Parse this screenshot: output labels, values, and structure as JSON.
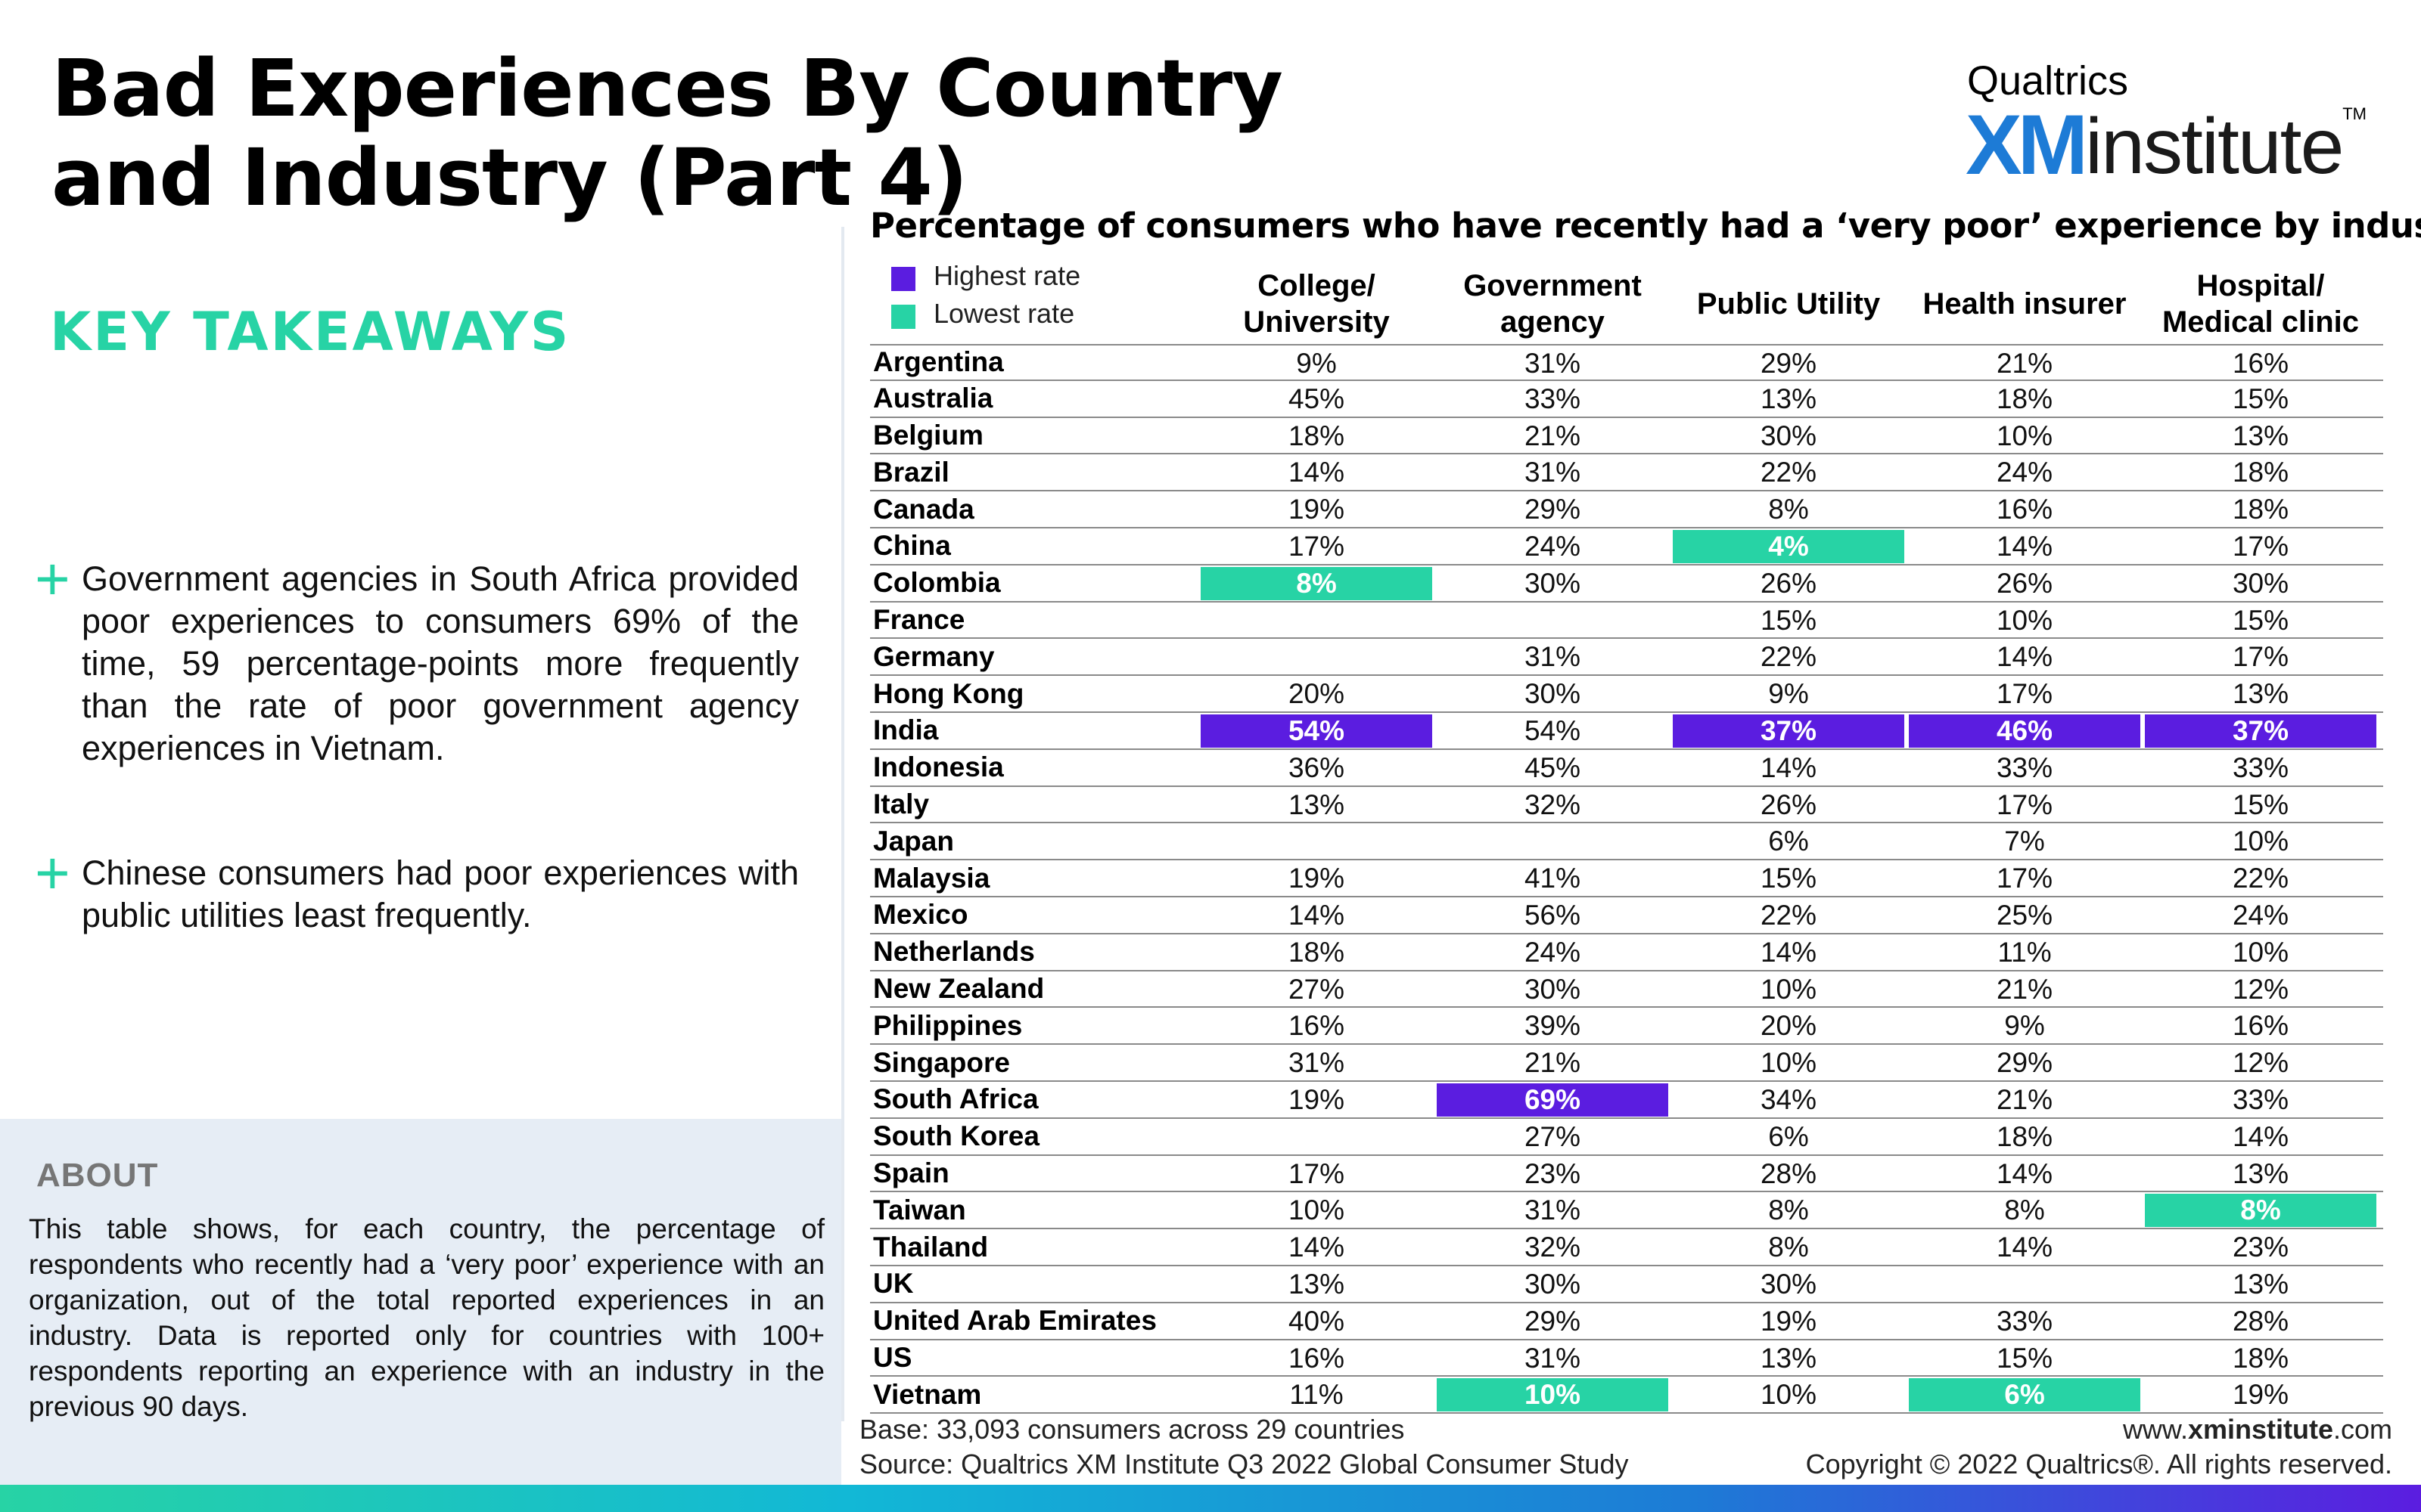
{
  "title": "Bad Experiences By Country and Industry (Part 4)",
  "logo": {
    "brand": "Qualtrics",
    "xm": "XM",
    "institute": "institute",
    "tm": "TM"
  },
  "takeaways": {
    "heading": "KEY TAKEAWAYS",
    "bullets": [
      "Government agencies in South Africa provided poor experiences to consumers 69% of the time, 59 percentage-points more frequently than the rate of poor government agency experiences in Vietnam.",
      "Chinese consumers had poor experiences with public utilities least frequently."
    ]
  },
  "about": {
    "heading": "ABOUT",
    "text": "This table shows, for each country, the percentage of respondents who recently had a ‘very poor’ experience with an organization, out of the total reported experiences in an industry. Data is reported only for countries with 100+ respondents reporting an experience with an industry in the previous 90 days."
  },
  "table": {
    "title": "Percentage of consumers who have recently had a ‘very poor’ experience by industry",
    "legend": [
      {
        "label": "Highest rate",
        "color": "#5b1de0"
      },
      {
        "label": "Lowest rate",
        "color": "#27d3a5"
      }
    ],
    "columns": [
      [
        "College/",
        "University"
      ],
      [
        "Government",
        "agency"
      ],
      [
        "Public Utility"
      ],
      [
        "Health insurer"
      ],
      [
        "Hospital/",
        "Medical clinic"
      ]
    ],
    "rows": [
      {
        "country": "Argentina",
        "values": [
          "9%",
          "31%",
          "29%",
          "21%",
          "16%"
        ],
        "flags": [
          "",
          "",
          "",
          "",
          ""
        ]
      },
      {
        "country": "Australia",
        "values": [
          "45%",
          "33%",
          "13%",
          "18%",
          "15%"
        ],
        "flags": [
          "",
          "",
          "",
          "",
          ""
        ]
      },
      {
        "country": "Belgium",
        "values": [
          "18%",
          "21%",
          "30%",
          "10%",
          "13%"
        ],
        "flags": [
          "",
          "",
          "",
          "",
          ""
        ]
      },
      {
        "country": "Brazil",
        "values": [
          "14%",
          "31%",
          "22%",
          "24%",
          "18%"
        ],
        "flags": [
          "",
          "",
          "",
          "",
          ""
        ]
      },
      {
        "country": "Canada",
        "values": [
          "19%",
          "29%",
          "8%",
          "16%",
          "18%"
        ],
        "flags": [
          "",
          "",
          "",
          "",
          ""
        ]
      },
      {
        "country": "China",
        "values": [
          "17%",
          "24%",
          "4%",
          "14%",
          "17%"
        ],
        "flags": [
          "",
          "",
          "lo",
          "",
          ""
        ]
      },
      {
        "country": "Colombia",
        "values": [
          "8%",
          "30%",
          "26%",
          "26%",
          "30%"
        ],
        "flags": [
          "lo",
          "",
          "",
          "",
          ""
        ]
      },
      {
        "country": "France",
        "values": [
          "",
          "",
          "15%",
          "10%",
          "15%"
        ],
        "flags": [
          "",
          "",
          "",
          "",
          ""
        ]
      },
      {
        "country": "Germany",
        "values": [
          "",
          "31%",
          "22%",
          "14%",
          "17%"
        ],
        "flags": [
          "",
          "",
          "",
          "",
          ""
        ]
      },
      {
        "country": "Hong Kong",
        "values": [
          "20%",
          "30%",
          "9%",
          "17%",
          "13%"
        ],
        "flags": [
          "",
          "",
          "",
          "",
          ""
        ]
      },
      {
        "country": "India",
        "values": [
          "54%",
          "54%",
          "37%",
          "46%",
          "37%"
        ],
        "flags": [
          "hi",
          "",
          "hi",
          "hi",
          "hi"
        ]
      },
      {
        "country": "Indonesia",
        "values": [
          "36%",
          "45%",
          "14%",
          "33%",
          "33%"
        ],
        "flags": [
          "",
          "",
          "",
          "",
          ""
        ]
      },
      {
        "country": "Italy",
        "values": [
          "13%",
          "32%",
          "26%",
          "17%",
          "15%"
        ],
        "flags": [
          "",
          "",
          "",
          "",
          ""
        ]
      },
      {
        "country": "Japan",
        "values": [
          "",
          "",
          "6%",
          "7%",
          "10%"
        ],
        "flags": [
          "",
          "",
          "",
          "",
          ""
        ]
      },
      {
        "country": "Malaysia",
        "values": [
          "19%",
          "41%",
          "15%",
          "17%",
          "22%"
        ],
        "flags": [
          "",
          "",
          "",
          "",
          ""
        ]
      },
      {
        "country": "Mexico",
        "values": [
          "14%",
          "56%",
          "22%",
          "25%",
          "24%"
        ],
        "flags": [
          "",
          "",
          "",
          "",
          ""
        ]
      },
      {
        "country": "Netherlands",
        "values": [
          "18%",
          "24%",
          "14%",
          "11%",
          "10%"
        ],
        "flags": [
          "",
          "",
          "",
          "",
          ""
        ]
      },
      {
        "country": "New Zealand",
        "values": [
          "27%",
          "30%",
          "10%",
          "21%",
          "12%"
        ],
        "flags": [
          "",
          "",
          "",
          "",
          ""
        ]
      },
      {
        "country": "Philippines",
        "values": [
          "16%",
          "39%",
          "20%",
          "9%",
          "16%"
        ],
        "flags": [
          "",
          "",
          "",
          "",
          ""
        ]
      },
      {
        "country": "Singapore",
        "values": [
          "31%",
          "21%",
          "10%",
          "29%",
          "12%"
        ],
        "flags": [
          "",
          "",
          "",
          "",
          ""
        ]
      },
      {
        "country": "South Africa",
        "values": [
          "19%",
          "69%",
          "34%",
          "21%",
          "33%"
        ],
        "flags": [
          "",
          "hi",
          "",
          "",
          ""
        ]
      },
      {
        "country": "South Korea",
        "values": [
          "",
          "27%",
          "6%",
          "18%",
          "14%"
        ],
        "flags": [
          "",
          "",
          "",
          "",
          ""
        ]
      },
      {
        "country": "Spain",
        "values": [
          "17%",
          "23%",
          "28%",
          "14%",
          "13%"
        ],
        "flags": [
          "",
          "",
          "",
          "",
          ""
        ]
      },
      {
        "country": "Taiwan",
        "values": [
          "10%",
          "31%",
          "8%",
          "8%",
          "8%"
        ],
        "flags": [
          "",
          "",
          "",
          "",
          "lo"
        ]
      },
      {
        "country": "Thailand",
        "values": [
          "14%",
          "32%",
          "8%",
          "14%",
          "23%"
        ],
        "flags": [
          "",
          "",
          "",
          "",
          ""
        ]
      },
      {
        "country": "UK",
        "values": [
          "13%",
          "30%",
          "30%",
          "",
          "13%"
        ],
        "flags": [
          "",
          "",
          "",
          "",
          ""
        ]
      },
      {
        "country": "United Arab Emirates",
        "values": [
          "40%",
          "29%",
          "19%",
          "33%",
          "28%"
        ],
        "flags": [
          "",
          "",
          "",
          "",
          ""
        ]
      },
      {
        "country": "US",
        "values": [
          "16%",
          "31%",
          "13%",
          "15%",
          "18%"
        ],
        "flags": [
          "",
          "",
          "",
          "",
          ""
        ]
      },
      {
        "country": "Vietnam",
        "values": [
          "11%",
          "10%",
          "10%",
          "6%",
          "19%"
        ],
        "flags": [
          "",
          "lo",
          "",
          "lo",
          ""
        ]
      }
    ]
  },
  "footer": {
    "base": "Base: 33,093 consumers across 29 countries",
    "source": "Source: Qualtrics XM Institute Q3 2022 Global Consumer Study",
    "url_prefix": "www.",
    "url_bold": "xminstitute",
    "url_suffix": ".com",
    "copyright": "Copyright © 2022 Qualtrics®. All rights reserved."
  }
}
